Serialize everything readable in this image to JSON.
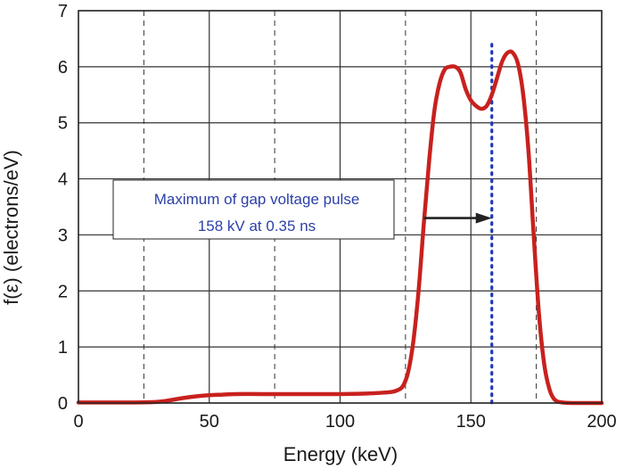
{
  "chart_data": {
    "type": "line",
    "title": "",
    "xlabel": "Energy (keV)",
    "ylabel": "f(ε) (electrons/eV)",
    "xlim": [
      0,
      200
    ],
    "ylim": [
      0,
      7
    ],
    "x_ticks": [
      0,
      50,
      100,
      150,
      200
    ],
    "y_ticks": [
      0,
      1,
      2,
      3,
      4,
      5,
      6,
      7
    ],
    "grid": "solid major lines at labelled ticks, dashed lines at 25, 75, 125, 175 keV",
    "series": [
      {
        "color": "#c8211e",
        "x": [
          0,
          20,
          30,
          35,
          40,
          45,
          50,
          55,
          60,
          70,
          80,
          90,
          100,
          110,
          115,
          120,
          122,
          124,
          126,
          128,
          130,
          132,
          134,
          136,
          138,
          140,
          142,
          144,
          146,
          148,
          150,
          152,
          154,
          156,
          158,
          160,
          162,
          164,
          166,
          168,
          170,
          172,
          174,
          176,
          178,
          180,
          182,
          185,
          190,
          200
        ],
        "y": [
          0.01,
          0.01,
          0.02,
          0.05,
          0.09,
          0.12,
          0.14,
          0.15,
          0.16,
          0.16,
          0.16,
          0.16,
          0.16,
          0.17,
          0.18,
          0.2,
          0.23,
          0.3,
          0.55,
          1.1,
          2.0,
          3.2,
          4.3,
          5.2,
          5.7,
          5.95,
          6.0,
          6.0,
          5.9,
          5.6,
          5.4,
          5.3,
          5.25,
          5.3,
          5.5,
          5.8,
          6.1,
          6.25,
          6.25,
          6.05,
          5.5,
          4.5,
          3.0,
          1.6,
          0.7,
          0.25,
          0.06,
          0.01,
          0.0,
          0.0
        ]
      }
    ],
    "reference_line": {
      "x": 158,
      "style": "blue dotted vertical line",
      "color": "#2038b8"
    },
    "annotation": {
      "line1": "Maximum of gap voltage pulse",
      "line2": "158 kV at 0.35 ns",
      "arrow_from_x": 132,
      "arrow_to_x": 158,
      "arrow_y": 3.3
    }
  }
}
